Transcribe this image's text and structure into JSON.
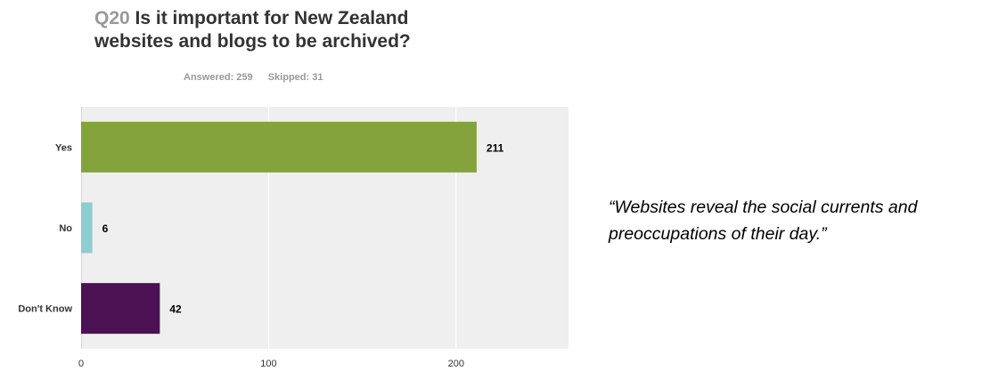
{
  "title": {
    "qnum": "Q20",
    "text": "Is it important for New Zealand websites and blogs to be archived?"
  },
  "stats": {
    "answered": "Answered: 259",
    "skipped": "Skipped: 31"
  },
  "chart_data": {
    "type": "bar",
    "orientation": "horizontal",
    "categories": [
      "Yes",
      "No",
      "Don't Know"
    ],
    "values": [
      211,
      6,
      42
    ],
    "colors": [
      "#85a33c",
      "#8fcdcf",
      "#4b1152"
    ],
    "xlim": [
      0,
      260
    ],
    "xticks": [
      0,
      100,
      200
    ],
    "grid": true,
    "background": "#efefef"
  },
  "quote": "“Websites reveal the social currents and preoccupations of their day.”"
}
